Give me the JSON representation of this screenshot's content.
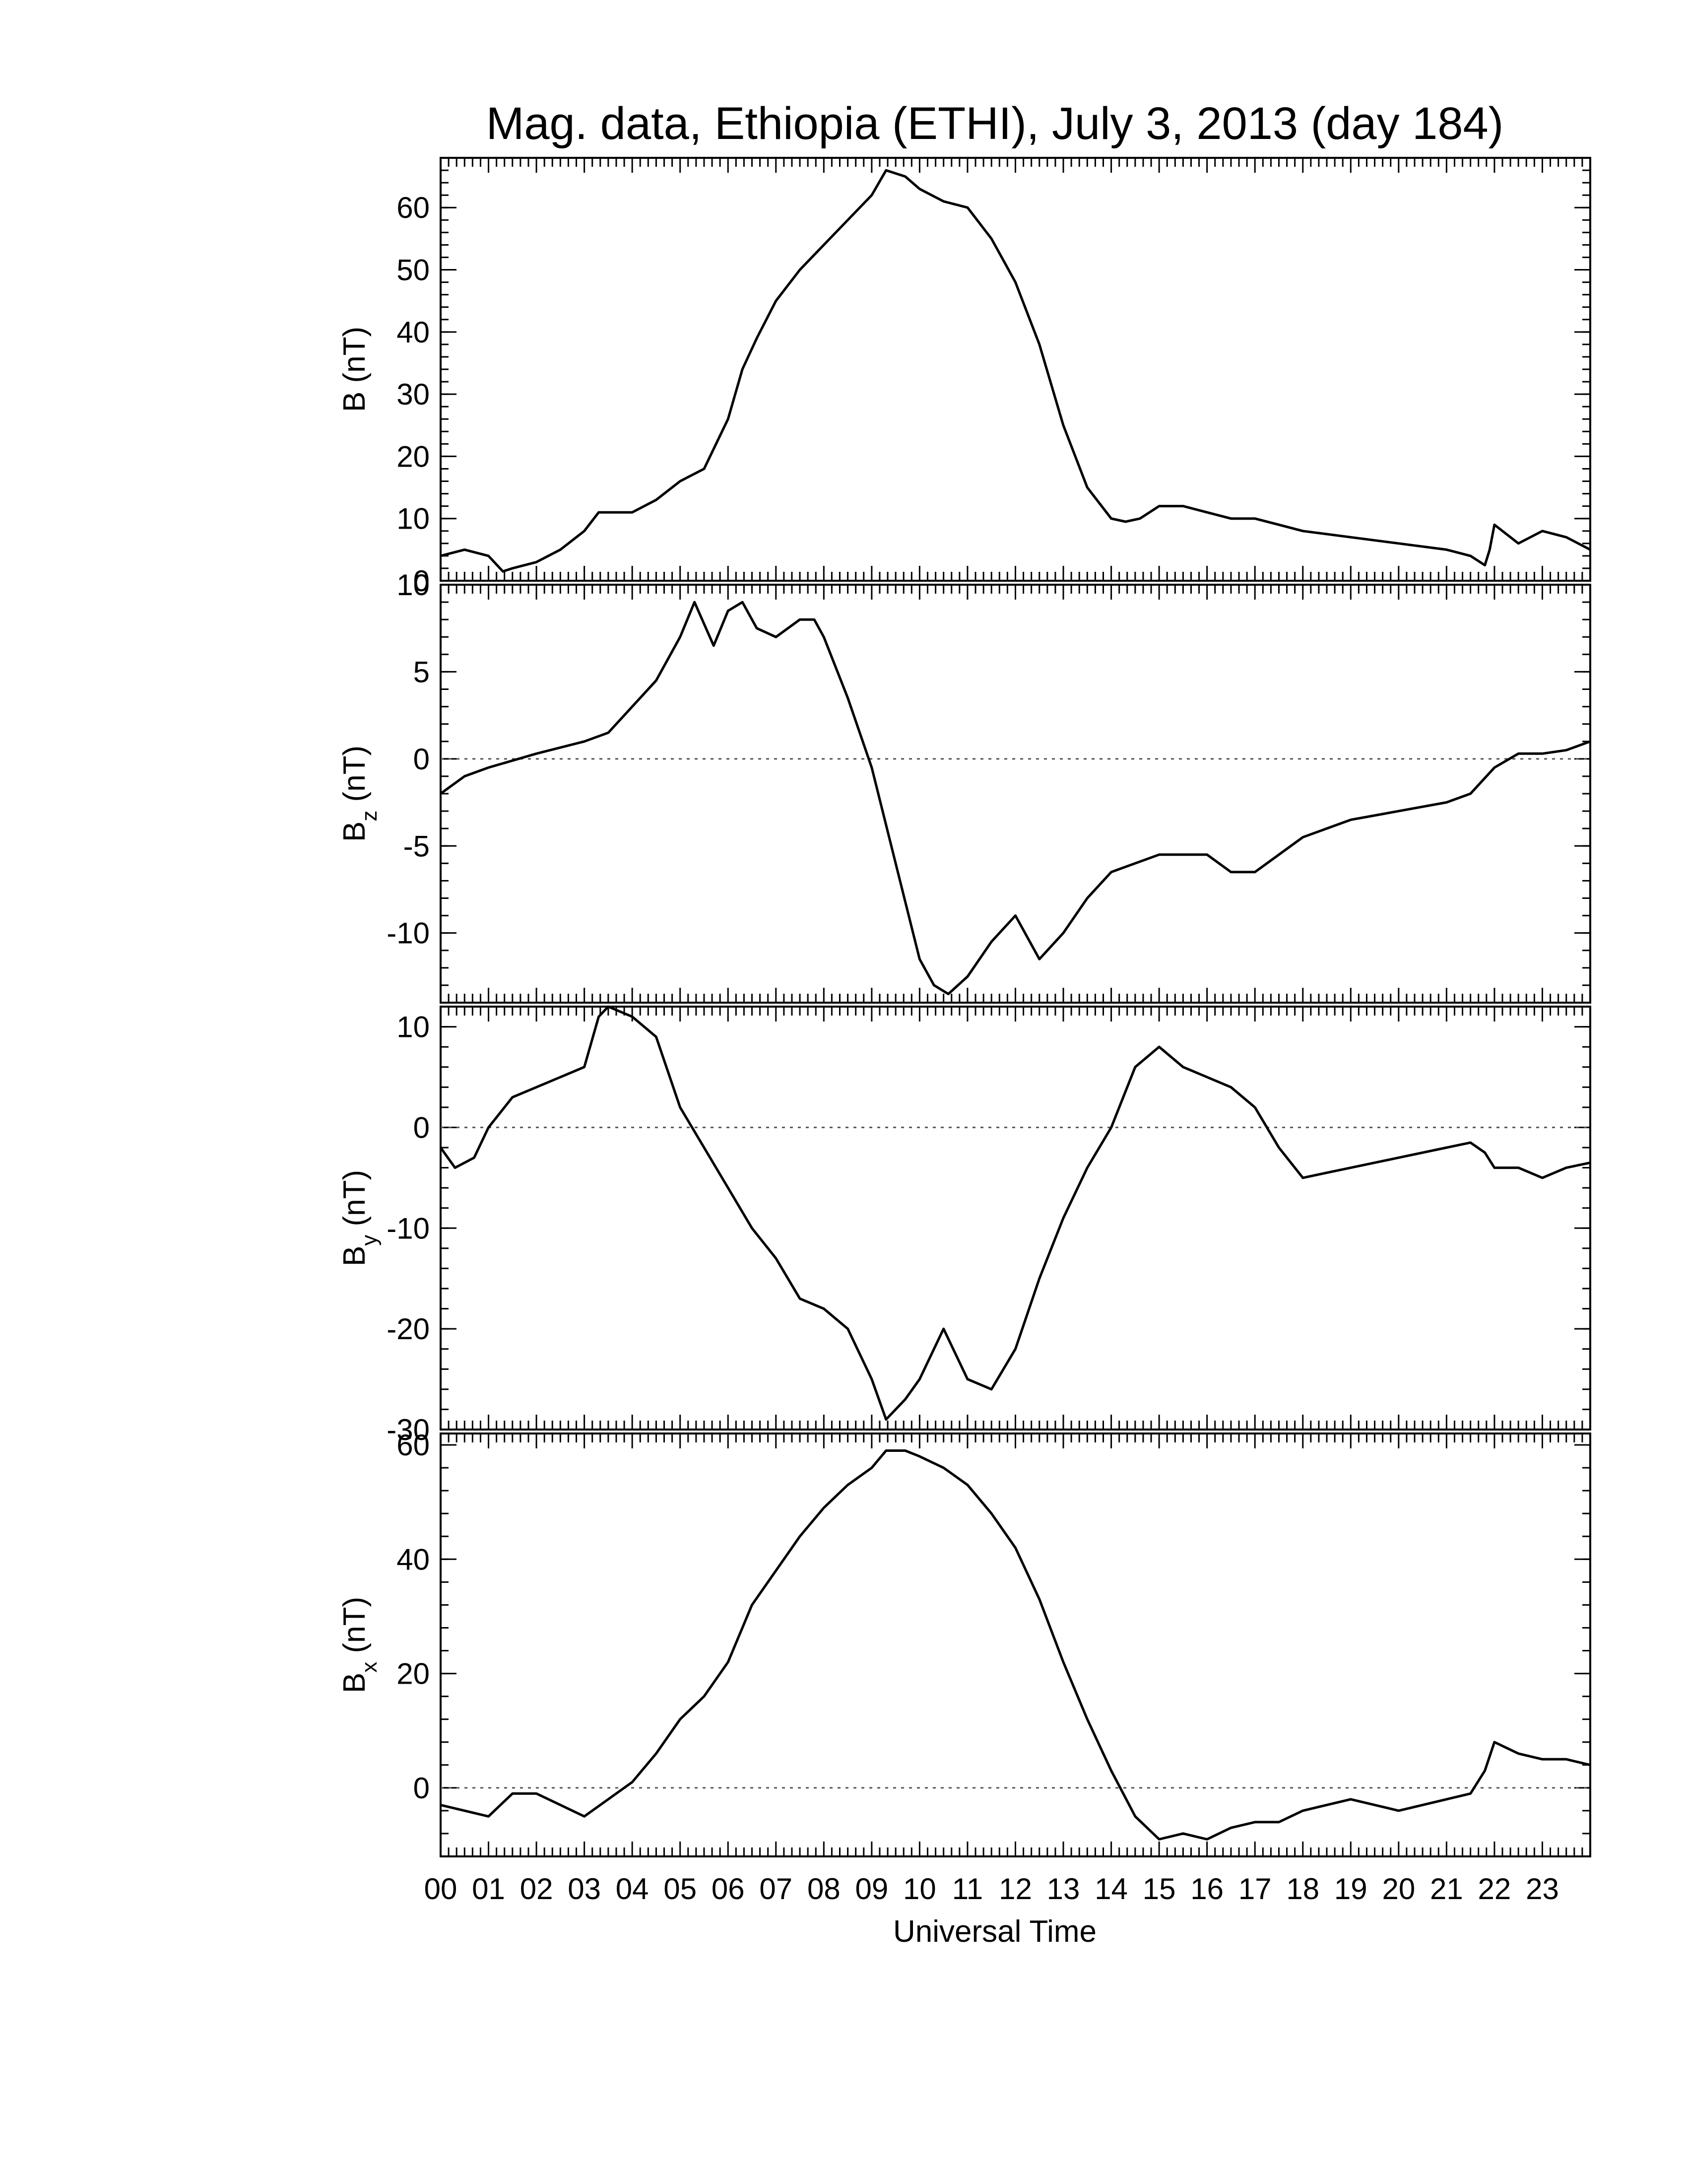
{
  "figure": {
    "title": "Mag. data, Ethiopia (ETHI), July 3, 2013 (day 184)",
    "xlabel": "Universal Time"
  },
  "colors": {
    "line": "#000000",
    "zero_line": "#555555",
    "background": "#ffffff"
  },
  "chart_data": [
    {
      "type": "line",
      "panel": "B",
      "ylabel": "B (nT)",
      "ylabel_main": "B",
      "ylabel_sub": "",
      "ylabel_unit": "(nT)",
      "ylim": [
        0,
        68
      ],
      "yticks": [
        0,
        10,
        20,
        30,
        40,
        50,
        60
      ],
      "zero_line": false,
      "x": [
        0,
        0.5,
        1,
        1.3,
        1.5,
        2,
        2.5,
        3,
        3.3,
        3.5,
        4,
        4.5,
        5,
        5.5,
        6,
        6.3,
        6.6,
        7,
        7.5,
        8,
        8.5,
        9,
        9.3,
        9.7,
        10,
        10.5,
        11,
        11.5,
        12,
        12.5,
        13,
        13.5,
        14,
        14.3,
        14.6,
        15,
        15.5,
        16,
        16.5,
        17,
        17.5,
        18,
        19,
        20,
        21,
        21.5,
        21.8,
        21.9,
        22,
        22.5,
        23,
        23.5,
        24
      ],
      "values": [
        4,
        5,
        4,
        1.5,
        2,
        3,
        5,
        8,
        11,
        11,
        11,
        13,
        16,
        18,
        26,
        34,
        39,
        45,
        50,
        54,
        58,
        62,
        66,
        65,
        63,
        61,
        60,
        55,
        48,
        38,
        25,
        15,
        10,
        9.5,
        10,
        12,
        12,
        11,
        10,
        10,
        9,
        8,
        7,
        6,
        5,
        4,
        2.5,
        5,
        9,
        6,
        8,
        7,
        5
      ]
    },
    {
      "type": "line",
      "panel": "Bz",
      "ylabel": "Bz (nT)",
      "ylabel_main": "B",
      "ylabel_sub": "z",
      "ylabel_unit": "(nT)",
      "ylim": [
        -14,
        10
      ],
      "yticks": [
        -10,
        -5,
        0,
        5,
        10
      ],
      "zero_line": true,
      "x": [
        0,
        0.5,
        1,
        2,
        3,
        3.5,
        4,
        4.5,
        5,
        5.3,
        5.7,
        6,
        6.3,
        6.6,
        7,
        7.5,
        7.8,
        8,
        8.5,
        9,
        9.5,
        10,
        10.3,
        10.6,
        11,
        11.5,
        12,
        12.5,
        13,
        13.5,
        14,
        14.5,
        15,
        15.5,
        16,
        16.5,
        17,
        17.5,
        18,
        19,
        20,
        21,
        21.5,
        22,
        22.5,
        23,
        23.5,
        24
      ],
      "values": [
        -2,
        -1,
        -0.5,
        0.3,
        1,
        1.5,
        3,
        4.5,
        7,
        9,
        6.5,
        8.5,
        9,
        7.5,
        7,
        8,
        8,
        7,
        3.5,
        -0.5,
        -6,
        -11.5,
        -13,
        -13.5,
        -12.5,
        -10.5,
        -9,
        -11.5,
        -10,
        -8,
        -6.5,
        -6,
        -5.5,
        -5.5,
        -5.5,
        -6.5,
        -6.5,
        -5.5,
        -4.5,
        -3.5,
        -3,
        -2.5,
        -2,
        -0.5,
        0.3,
        0.3,
        0.5,
        1
      ]
    },
    {
      "type": "line",
      "panel": "By",
      "ylabel": "By (nT)",
      "ylabel_main": "B",
      "ylabel_sub": "y",
      "ylabel_unit": "(nT)",
      "ylim": [
        -30,
        12
      ],
      "yticks": [
        -30,
        -20,
        -10,
        0,
        10
      ],
      "zero_line": true,
      "x": [
        0,
        0.3,
        0.7,
        1,
        1.5,
        2,
        2.5,
        3,
        3.3,
        3.5,
        4,
        4.5,
        5,
        5.5,
        6,
        6.5,
        7,
        7.5,
        8,
        8.5,
        9,
        9.3,
        9.7,
        10,
        10.5,
        11,
        11.5,
        12,
        12.5,
        13,
        13.5,
        14,
        14.5,
        15,
        15.5,
        16,
        16.5,
        17,
        17.5,
        18,
        18.5,
        19,
        20,
        21,
        21.5,
        21.8,
        22,
        22.5,
        23,
        23.5,
        24
      ],
      "values": [
        -2,
        -4,
        -3,
        0,
        3,
        4,
        5,
        6,
        11,
        12,
        11,
        9,
        2,
        -2,
        -6,
        -10,
        -13,
        -17,
        -18,
        -20,
        -25,
        -29,
        -27,
        -25,
        -20,
        -25,
        -26,
        -22,
        -15,
        -9,
        -4,
        0,
        6,
        8,
        6,
        5,
        4,
        2,
        -2,
        -5,
        -4.5,
        -4,
        -3,
        -2,
        -1.5,
        -2.5,
        -4,
        -4,
        -5,
        -4,
        -3.5
      ]
    },
    {
      "type": "line",
      "panel": "Bx",
      "ylabel": "Bx (nT)",
      "ylabel_main": "B",
      "ylabel_sub": "x",
      "ylabel_unit": "(nT)",
      "ylim": [
        -12,
        62
      ],
      "yticks": [
        0,
        20,
        40,
        60
      ],
      "zero_line": true,
      "x": [
        0,
        0.5,
        1,
        1.5,
        2,
        2.5,
        3,
        3.5,
        4,
        4.5,
        5,
        5.5,
        6,
        6.5,
        7,
        7.5,
        8,
        8.5,
        9,
        9.3,
        9.7,
        10,
        10.5,
        11,
        11.5,
        12,
        12.5,
        13,
        13.5,
        14,
        14.5,
        15,
        15.5,
        16,
        16.5,
        17,
        17.5,
        18,
        19,
        20,
        21,
        21.5,
        21.8,
        22,
        22.5,
        23,
        23.5,
        24
      ],
      "values": [
        -3,
        -4,
        -5,
        -1,
        -1,
        -3,
        -5,
        -2,
        1,
        6,
        12,
        16,
        22,
        32,
        38,
        44,
        49,
        53,
        56,
        59,
        59,
        58,
        56,
        53,
        48,
        42,
        33,
        22,
        12,
        3,
        -5,
        -9,
        -8,
        -9,
        -7,
        -6,
        -6,
        -4,
        -2,
        -4,
        -2,
        -1,
        3,
        8,
        6,
        5,
        5,
        4
      ]
    }
  ],
  "xaxis": {
    "range": [
      0,
      24
    ],
    "tick_labels": [
      "00",
      "01",
      "02",
      "03",
      "04",
      "05",
      "06",
      "07",
      "08",
      "09",
      "10",
      "11",
      "12",
      "13",
      "14",
      "15",
      "16",
      "17",
      "18",
      "19",
      "20",
      "21",
      "22",
      "23"
    ]
  }
}
